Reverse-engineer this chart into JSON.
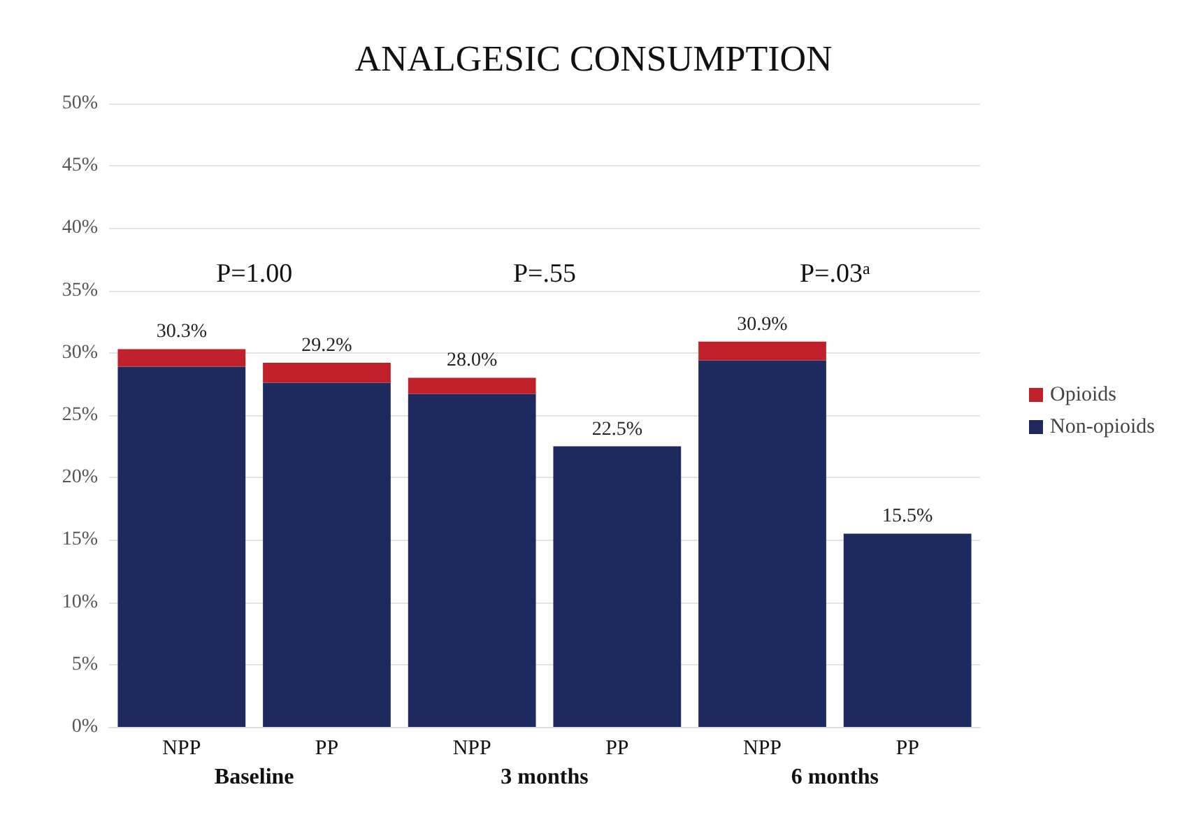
{
  "chart_data": {
    "type": "bar",
    "title": "ANALGESIC CONSUMPTION",
    "categories": [
      "NPP",
      "PP",
      "NPP",
      "PP",
      "NPP",
      "PP"
    ],
    "stacked": true,
    "series": [
      {
        "name": "Non-opioids",
        "color": "#1e2a5e",
        "values": [
          28.9,
          27.6,
          26.7,
          22.5,
          29.4,
          15.5
        ]
      },
      {
        "name": "Opioids",
        "color": "#c0202a",
        "values": [
          1.4,
          1.6,
          1.3,
          0,
          1.5,
          0
        ]
      }
    ],
    "totals": [
      "30.3%",
      "29.2%",
      "28.0%",
      "22.5%",
      "30.9%",
      "15.5%"
    ],
    "annotations": [
      "Baseline",
      "3 months",
      "6 months",
      "P=1.00",
      "P=.55",
      "P=.03$^{a}$"
    ],
    "ylim": [
      0,
      50
    ],
    "yticks": [
      {
        "value": 0,
        "label": "0%"
      },
      {
        "value": 5,
        "label": "5%"
      },
      {
        "value": 10,
        "label": "10%"
      },
      {
        "value": 15,
        "label": "15%"
      },
      {
        "value": 20,
        "label": "20%"
      },
      {
        "value": 25,
        "label": "25%"
      },
      {
        "value": 30,
        "label": "30%"
      },
      {
        "value": 35,
        "label": "35%"
      },
      {
        "value": 40,
        "label": "40%"
      },
      {
        "value": 45,
        "label": "45%"
      },
      {
        "value": 50,
        "label": "50%"
      }
    ],
    "grid": "y",
    "legend": "right"
  }
}
